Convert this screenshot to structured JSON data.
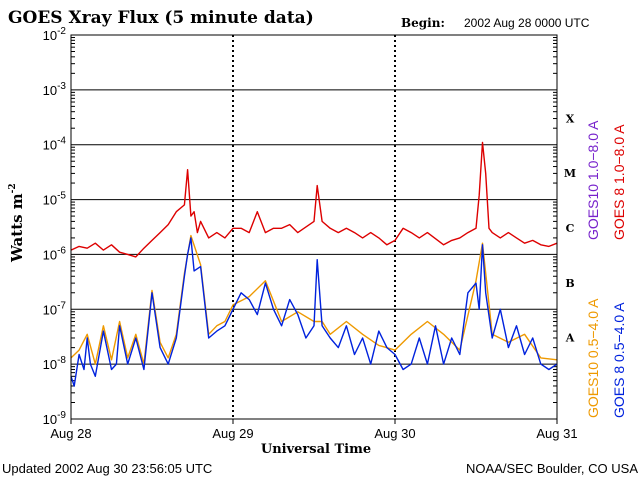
{
  "chart_data": {
    "type": "line",
    "title": "GOES Xray Flux (5 minute data)",
    "begin_label": "Begin:",
    "begin_value": "2002 Aug 28 0000 UTC",
    "xlabel": "Universal Time",
    "ylabel_main": "Watts m",
    "ylabel_sup": "-2",
    "x_ticks": [
      "Aug 28",
      "Aug 29",
      "Aug 30",
      "Aug 31"
    ],
    "x_range_days": [
      0,
      3
    ],
    "y_scale": "log",
    "y_range": [
      1e-09,
      0.01
    ],
    "y_ticks": [
      {
        "base": "10",
        "exp": "-2",
        "value": 0.01
      },
      {
        "base": "10",
        "exp": "-3",
        "value": 0.001
      },
      {
        "base": "10",
        "exp": "-4",
        "value": 0.0001
      },
      {
        "base": "10",
        "exp": "-5",
        "value": 1e-05
      },
      {
        "base": "10",
        "exp": "-6",
        "value": 1e-06
      },
      {
        "base": "10",
        "exp": "-7",
        "value": 1e-07
      },
      {
        "base": "10",
        "exp": "-8",
        "value": 1e-08
      },
      {
        "base": "10",
        "exp": "-9",
        "value": 1e-09
      }
    ],
    "flare_classes": [
      {
        "label": "X",
        "value": 0.0001
      },
      {
        "label": "M",
        "value": 1e-05
      },
      {
        "label": "C",
        "value": 1e-06
      },
      {
        "label": "B",
        "value": 1e-07
      },
      {
        "label": "A",
        "value": 1e-08
      }
    ],
    "grid": true,
    "legend_placement": "right-vertical",
    "series": [
      {
        "name": "GOES 8 1.0−8.0 A",
        "color": "#dd0000",
        "x": [
          0,
          0.05,
          0.1,
          0.15,
          0.2,
          0.25,
          0.3,
          0.35,
          0.4,
          0.45,
          0.5,
          0.55,
          0.6,
          0.65,
          0.7,
          0.72,
          0.74,
          0.76,
          0.78,
          0.8,
          0.85,
          0.9,
          0.95,
          1.0,
          1.05,
          1.1,
          1.15,
          1.2,
          1.25,
          1.3,
          1.35,
          1.4,
          1.5,
          1.52,
          1.55,
          1.6,
          1.65,
          1.7,
          1.75,
          1.8,
          1.85,
          1.9,
          1.95,
          2.0,
          2.05,
          2.1,
          2.15,
          2.2,
          2.3,
          2.35,
          2.4,
          2.45,
          2.5,
          2.52,
          2.54,
          2.56,
          2.58,
          2.6,
          2.65,
          2.7,
          2.75,
          2.8,
          2.85,
          2.9,
          2.95,
          3.0
        ],
        "y": [
          1.2e-06,
          1.4e-06,
          1.3e-06,
          1.6e-06,
          1.2e-06,
          1.5e-06,
          1.1e-06,
          1e-06,
          9e-07,
          1.3e-06,
          1.8e-06,
          2.5e-06,
          3.5e-06,
          6e-06,
          8e-06,
          3.5e-05,
          5e-06,
          6e-06,
          2.5e-06,
          4e-06,
          2e-06,
          2.5e-06,
          2e-06,
          3e-06,
          3e-06,
          2.5e-06,
          6e-06,
          2.5e-06,
          3e-06,
          3e-06,
          3.5e-06,
          2.5e-06,
          4e-06,
          1.8e-05,
          4e-06,
          3e-06,
          2.5e-06,
          3e-06,
          2.5e-06,
          2e-06,
          2.5e-06,
          2e-06,
          1.5e-06,
          1.8e-06,
          3e-06,
          2.5e-06,
          2e-06,
          2.5e-06,
          1.5e-06,
          1.8e-06,
          2e-06,
          2.5e-06,
          3e-06,
          1.2e-05,
          0.00011,
          3e-05,
          3e-06,
          2.5e-06,
          2e-06,
          2.5e-06,
          2e-06,
          1.6e-06,
          1.8e-06,
          1.5e-06,
          1.4e-06,
          1.6e-06
        ]
      },
      {
        "name": "GOES10 1.0−8.0 A",
        "color": "#7722cc",
        "x": [],
        "y": []
      },
      {
        "name": "GOES 8 0.5−4.0 A",
        "color": "#0022dd",
        "x": [
          0,
          0.02,
          0.05,
          0.08,
          0.1,
          0.12,
          0.15,
          0.2,
          0.25,
          0.28,
          0.3,
          0.35,
          0.4,
          0.45,
          0.5,
          0.55,
          0.6,
          0.65,
          0.7,
          0.72,
          0.74,
          0.76,
          0.8,
          0.85,
          0.9,
          0.95,
          1.0,
          1.05,
          1.1,
          1.15,
          1.2,
          1.25,
          1.3,
          1.35,
          1.4,
          1.45,
          1.5,
          1.52,
          1.55,
          1.6,
          1.65,
          1.7,
          1.75,
          1.8,
          1.85,
          1.9,
          1.95,
          2.0,
          2.05,
          2.1,
          2.15,
          2.2,
          2.25,
          2.3,
          2.35,
          2.4,
          2.45,
          2.5,
          2.52,
          2.54,
          2.56,
          2.6,
          2.65,
          2.7,
          2.75,
          2.8,
          2.85,
          2.9,
          2.95,
          3.0
        ],
        "y": [
          6e-09,
          4e-09,
          1.5e-08,
          8e-09,
          3e-08,
          1e-08,
          6e-09,
          4e-08,
          8e-09,
          1e-08,
          5e-08,
          1e-08,
          3e-08,
          8e-09,
          2e-07,
          2e-08,
          1e-08,
          3e-08,
          4e-07,
          1e-06,
          2e-06,
          5e-07,
          6e-07,
          3e-08,
          4e-08,
          5e-08,
          1e-07,
          2e-07,
          1.5e-07,
          8e-08,
          3e-07,
          1e-07,
          5e-08,
          1.5e-07,
          8e-08,
          3e-08,
          5e-08,
          8e-07,
          5e-08,
          3e-08,
          2e-08,
          5e-08,
          1.5e-08,
          3e-08,
          1e-08,
          4e-08,
          2e-08,
          1.5e-08,
          8e-09,
          1e-08,
          3e-08,
          1e-08,
          5e-08,
          1e-08,
          3e-08,
          1.5e-08,
          2e-07,
          3e-07,
          1e-07,
          1.5e-06,
          2e-07,
          3e-08,
          1e-07,
          2e-08,
          5e-08,
          1.5e-08,
          3e-08,
          1e-08,
          8e-09,
          1e-08
        ]
      },
      {
        "name": "GOES10 0.5−4.0 A",
        "color": "#ee9900",
        "x": [
          0,
          0.05,
          0.1,
          0.15,
          0.2,
          0.25,
          0.3,
          0.35,
          0.4,
          0.45,
          0.5,
          0.55,
          0.6,
          0.65,
          0.7,
          0.74,
          0.8,
          0.85,
          0.9,
          0.95,
          1.0,
          1.1,
          1.2,
          1.3,
          1.4,
          1.5,
          1.55,
          1.6,
          1.7,
          1.8,
          1.9,
          2.0,
          2.1,
          2.2,
          2.3,
          2.4,
          2.5,
          2.54,
          2.6,
          2.7,
          2.8,
          2.9,
          3.0
        ],
        "y": [
          1.3e-08,
          1.8e-08,
          3.5e-08,
          1e-08,
          5e-08,
          1.2e-08,
          6e-08,
          1.3e-08,
          3.5e-08,
          1e-08,
          2.2e-07,
          2.5e-08,
          1.3e-08,
          3.5e-08,
          4.5e-07,
          2.2e-06,
          6.5e-07,
          3.5e-08,
          5e-08,
          6e-08,
          1.2e-07,
          1.7e-07,
          3.3e-07,
          6e-08,
          9e-08,
          6e-08,
          6e-08,
          3.5e-08,
          6e-08,
          3.5e-08,
          2.2e-08,
          1.8e-08,
          3.5e-08,
          6e-08,
          3.5e-08,
          1.8e-08,
          3.3e-07,
          1.6e-06,
          3.5e-08,
          2.5e-08,
          3.5e-08,
          1.3e-08,
          1.2e-08
        ]
      }
    ]
  },
  "footer": {
    "updated": "Updated 2002 Aug 30 23:56:05 UTC",
    "credit": "NOAA/SEC Boulder, CO USA"
  }
}
